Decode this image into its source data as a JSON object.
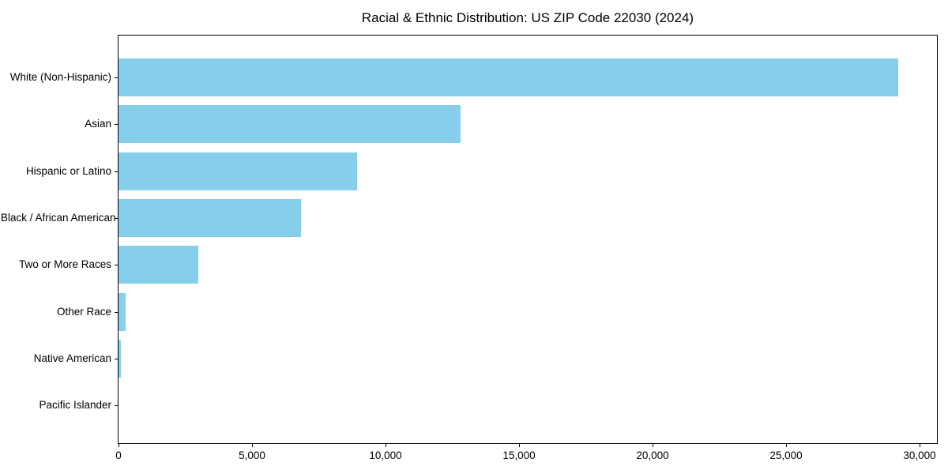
{
  "chart_data": {
    "type": "bar",
    "orientation": "horizontal",
    "title": "Racial & Ethnic Distribution: US ZIP Code 22030 (2024)",
    "categories": [
      "White (Non-Hispanic)",
      "Asian",
      "Hispanic or Latino",
      "Black / African American",
      "Two or More Races",
      "Other Race",
      "Native American",
      "Pacific Islander"
    ],
    "values": [
      29200,
      12800,
      8950,
      6850,
      3000,
      270,
      100,
      0
    ],
    "xlabel": "",
    "ylabel": "",
    "xlim": [
      0,
      30660
    ],
    "xticks": [
      0,
      5000,
      10000,
      15000,
      20000,
      25000,
      30000
    ],
    "xtick_labels": [
      "0",
      "5,000",
      "10,000",
      "15,000",
      "20,000",
      "25,000",
      "30,000"
    ],
    "bar_color": "#87CEEB",
    "spine_color": "#000000",
    "grid": false,
    "legend": null
  }
}
